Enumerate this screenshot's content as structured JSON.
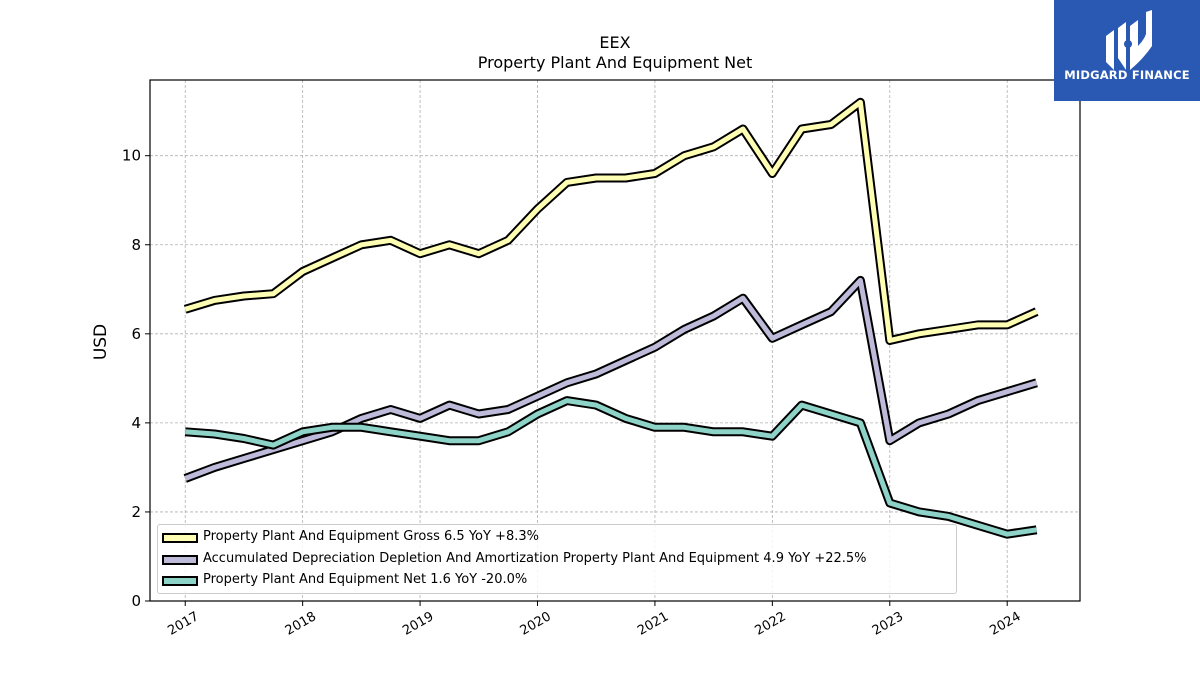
{
  "chart_data": {
    "type": "line",
    "title": "EEX",
    "subtitle": "Property Plant And Equipment Net",
    "xlabel": "",
    "ylabel": "USD",
    "ylim": [
      0,
      11.7
    ],
    "xlim": [
      2016.7,
      2024.62
    ],
    "yticks": [
      0,
      2,
      4,
      6,
      8,
      10
    ],
    "xticks": [
      2017,
      2018,
      2019,
      2020,
      2021,
      2022,
      2023,
      2024
    ],
    "xtick_labels": [
      "2017",
      "2018",
      "2019",
      "2020",
      "2021",
      "2022",
      "2023",
      "2024"
    ],
    "grid": true,
    "legend_position": "lower-left",
    "series": [
      {
        "name": "Property Plant And Equipment Gross",
        "legend_label": "Property Plant And Equipment Gross  6.5 YoY +8.3%",
        "color": "#ffffb3",
        "x": [
          2017.0,
          2017.25,
          2017.5,
          2017.75,
          2018.0,
          2018.25,
          2018.5,
          2018.75,
          2019.0,
          2019.25,
          2019.5,
          2019.75,
          2020.0,
          2020.25,
          2020.5,
          2020.75,
          2021.0,
          2021.25,
          2021.5,
          2021.75,
          2022.0,
          2022.25,
          2022.5,
          2022.75,
          2023.0,
          2023.25,
          2023.5,
          2023.75,
          2024.0,
          2024.25
        ],
        "y": [
          6.55,
          6.75,
          6.85,
          6.9,
          7.4,
          7.7,
          8.0,
          8.1,
          7.8,
          8.0,
          7.8,
          8.1,
          8.8,
          9.4,
          9.5,
          9.5,
          9.6,
          10.0,
          10.2,
          10.6,
          9.6,
          10.6,
          10.7,
          11.2,
          5.85,
          6.0,
          6.1,
          6.2,
          6.2,
          6.5
        ]
      },
      {
        "name": "Accumulated Depreciation Depletion And Amortization Property Plant And Equipment",
        "legend_label": "Accumulated Depreciation Depletion And Amortization Property Plant And Equipment  4.9 YoY +22.5%",
        "color": "#bebada",
        "x": [
          2017.0,
          2017.25,
          2017.5,
          2017.75,
          2018.0,
          2018.25,
          2018.5,
          2018.75,
          2019.0,
          2019.25,
          2019.5,
          2019.75,
          2020.0,
          2020.25,
          2020.5,
          2020.75,
          2021.0,
          2021.25,
          2021.5,
          2021.75,
          2022.0,
          2022.25,
          2022.5,
          2022.75,
          2023.0,
          2023.25,
          2023.5,
          2023.75,
          2024.0,
          2024.25
        ],
        "y": [
          2.75,
          3.0,
          3.2,
          3.4,
          3.6,
          3.8,
          4.1,
          4.3,
          4.1,
          4.4,
          4.2,
          4.3,
          4.6,
          4.9,
          5.1,
          5.4,
          5.7,
          6.1,
          6.4,
          6.8,
          5.9,
          6.2,
          6.5,
          7.2,
          3.6,
          4.0,
          4.2,
          4.5,
          4.7,
          4.9
        ]
      },
      {
        "name": "Property Plant And Equipment Net",
        "legend_label": "Property Plant And Equipment Net  1.6 YoY -20.0%",
        "color": "#8dd3c7",
        "x": [
          2017.0,
          2017.25,
          2017.5,
          2017.75,
          2018.0,
          2018.25,
          2018.5,
          2018.75,
          2019.0,
          2019.25,
          2019.5,
          2019.75,
          2020.0,
          2020.25,
          2020.5,
          2020.75,
          2021.0,
          2021.25,
          2021.5,
          2021.75,
          2022.0,
          2022.25,
          2022.5,
          2022.75,
          2023.0,
          2023.25,
          2023.5,
          2023.75,
          2024.0,
          2024.25
        ],
        "y": [
          3.8,
          3.75,
          3.65,
          3.5,
          3.8,
          3.9,
          3.9,
          3.8,
          3.7,
          3.6,
          3.6,
          3.8,
          4.2,
          4.5,
          4.4,
          4.1,
          3.9,
          3.9,
          3.8,
          3.8,
          3.7,
          4.4,
          4.2,
          4.0,
          2.2,
          2.0,
          1.9,
          1.7,
          1.5,
          1.6
        ]
      }
    ]
  },
  "logo": {
    "text": "MIDGARD FINANCE",
    "background": "#2a59b3"
  }
}
